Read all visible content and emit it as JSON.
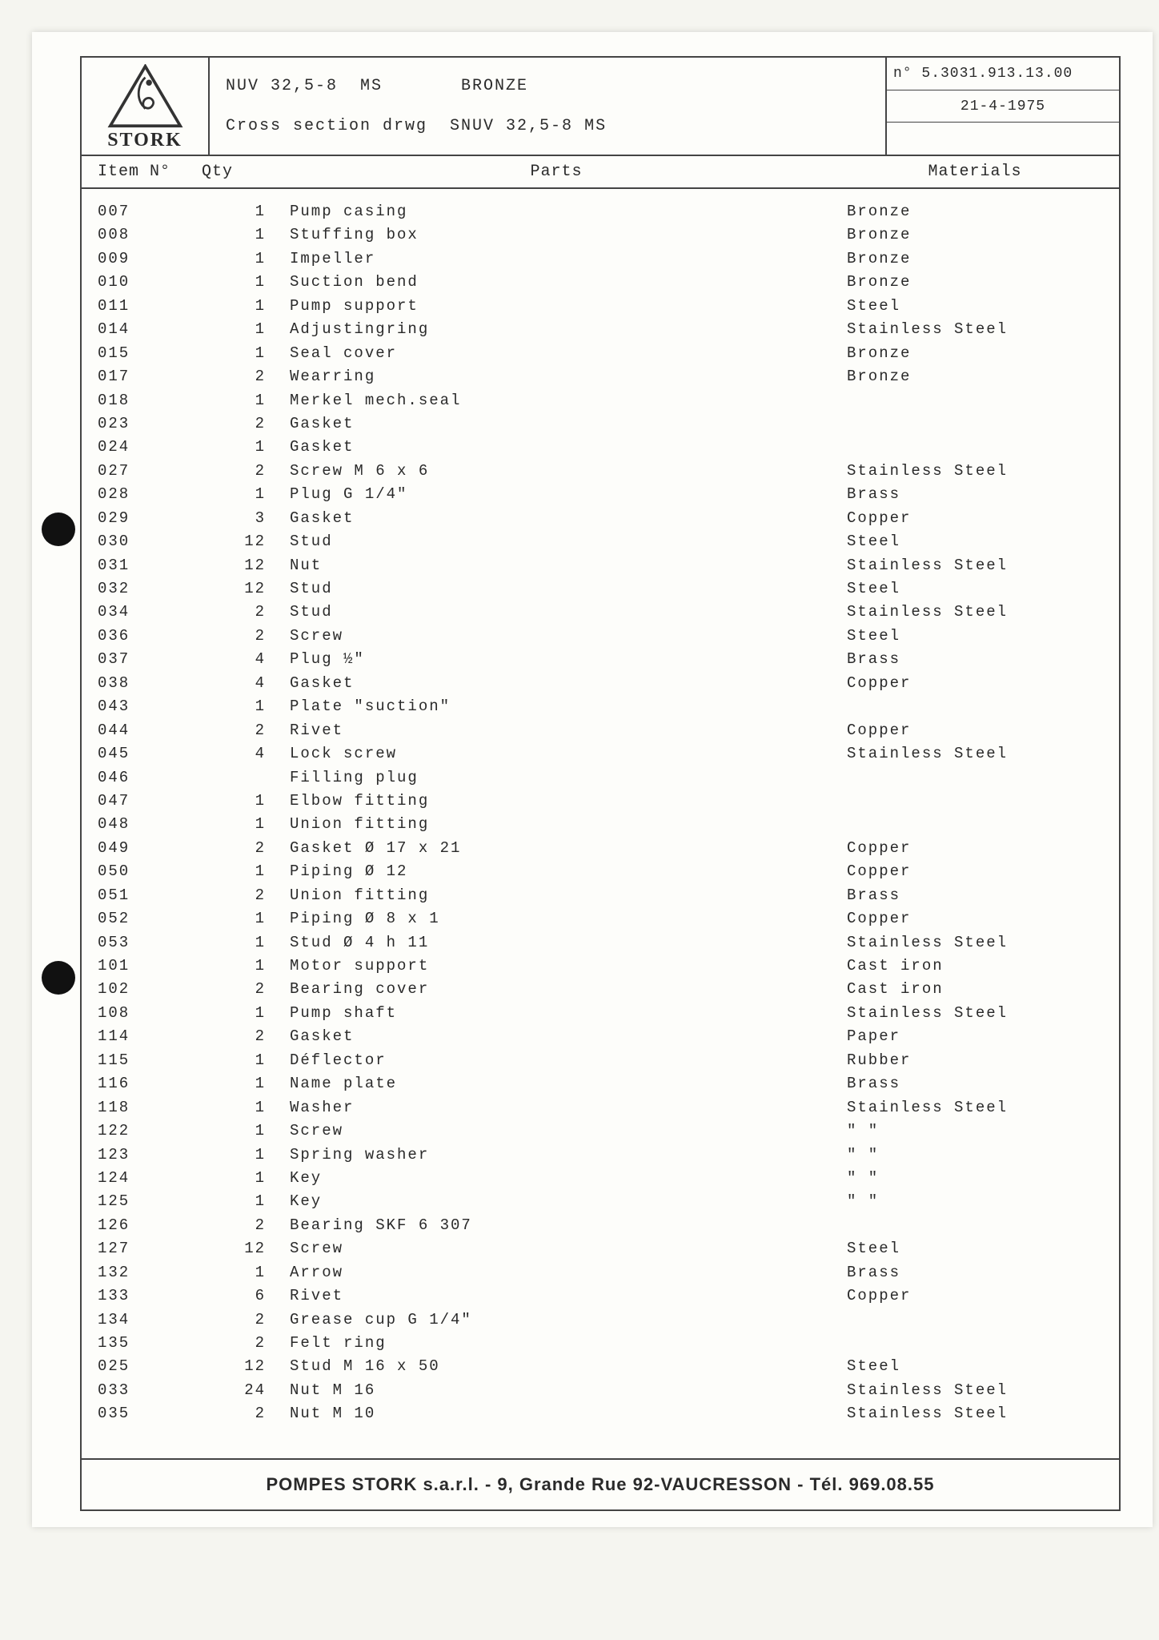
{
  "header": {
    "logo_text": "STORK",
    "title_line1": "NUV 32,5-8  MS       BRONZE",
    "title_line2": "Cross section drwg  SNUV 32,5-8 MS",
    "doc_no": "n° 5.3031.913.13.00",
    "date": "21-4-1975"
  },
  "columns": {
    "item": "Item N°",
    "qty": "Qty",
    "parts": "Parts",
    "materials": "Materials"
  },
  "rows": [
    {
      "item": "007",
      "qty": "1",
      "part": "Pump casing",
      "mat": "Bronze"
    },
    {
      "item": "008",
      "qty": "1",
      "part": "Stuffing box",
      "mat": "Bronze"
    },
    {
      "item": "009",
      "qty": "1",
      "part": "Impeller",
      "mat": "Bronze"
    },
    {
      "item": "010",
      "qty": "1",
      "part": "Suction bend",
      "mat": "Bronze"
    },
    {
      "item": "011",
      "qty": "1",
      "part": "Pump support",
      "mat": "Steel"
    },
    {
      "item": "014",
      "qty": "1",
      "part": "Adjustingring",
      "mat": "Stainless Steel"
    },
    {
      "item": "015",
      "qty": "1",
      "part": "Seal cover",
      "mat": "Bronze"
    },
    {
      "item": "017",
      "qty": "2",
      "part": "Wearring",
      "mat": "Bronze"
    },
    {
      "item": "018",
      "qty": "1",
      "part": "Merkel mech.seal",
      "mat": ""
    },
    {
      "item": "023",
      "qty": "2",
      "part": "Gasket",
      "mat": ""
    },
    {
      "item": "024",
      "qty": "1",
      "part": "Gasket",
      "mat": ""
    },
    {
      "item": "027",
      "qty": "2",
      "part": "Screw M 6 x 6",
      "mat": "Stainless Steel"
    },
    {
      "item": "028",
      "qty": "1",
      "part": "Plug G 1/4\"",
      "mat": "Brass"
    },
    {
      "item": "029",
      "qty": "3",
      "part": "Gasket",
      "mat": "Copper"
    },
    {
      "item": "030",
      "qty": "12",
      "part": "Stud",
      "mat": "Steel"
    },
    {
      "item": "031",
      "qty": "12",
      "part": "Nut",
      "mat": "Stainless Steel"
    },
    {
      "item": "032",
      "qty": "12",
      "part": "Stud",
      "mat": "Steel"
    },
    {
      "item": "034",
      "qty": "2",
      "part": "Stud",
      "mat": "Stainless Steel"
    },
    {
      "item": "036",
      "qty": "2",
      "part": "Screw",
      "mat": "Steel"
    },
    {
      "item": "037",
      "qty": "4",
      "part": "Plug ½\"",
      "mat": "Brass"
    },
    {
      "item": "038",
      "qty": "4",
      "part": "Gasket",
      "mat": "Copper"
    },
    {
      "item": "043",
      "qty": "1",
      "part": "Plate \"suction\"",
      "mat": ""
    },
    {
      "item": "044",
      "qty": "2",
      "part": "Rivet",
      "mat": "Copper"
    },
    {
      "item": "045",
      "qty": "4",
      "part": "Lock screw",
      "mat": "Stainless Steel"
    },
    {
      "item": "046",
      "qty": "",
      "part": "Filling plug",
      "mat": ""
    },
    {
      "item": "047",
      "qty": "1",
      "part": "Elbow fitting",
      "mat": ""
    },
    {
      "item": "048",
      "qty": "1",
      "part": "Union fitting",
      "mat": ""
    },
    {
      "item": "049",
      "qty": "2",
      "part": "Gasket Ø 17 x 21",
      "mat": "Copper"
    },
    {
      "item": "050",
      "qty": "1",
      "part": "Piping Ø 12",
      "mat": "Copper"
    },
    {
      "item": "051",
      "qty": "2",
      "part": "Union fitting",
      "mat": "Brass"
    },
    {
      "item": "052",
      "qty": "1",
      "part": "Piping Ø 8 x 1",
      "mat": "Copper"
    },
    {
      "item": "053",
      "qty": "1",
      "part": "Stud Ø 4 h 11",
      "mat": "Stainless Steel"
    },
    {
      "item": "101",
      "qty": "1",
      "part": "Motor support",
      "mat": "Cast iron"
    },
    {
      "item": "102",
      "qty": "2",
      "part": "Bearing cover",
      "mat": "Cast iron"
    },
    {
      "item": "108",
      "qty": "1",
      "part": "Pump shaft",
      "mat": "Stainless Steel"
    },
    {
      "item": "114",
      "qty": "2",
      "part": "Gasket",
      "mat": "Paper"
    },
    {
      "item": "115",
      "qty": "1",
      "part": "Déflector",
      "mat": "Rubber"
    },
    {
      "item": "116",
      "qty": "1",
      "part": "Name plate",
      "mat": "Brass"
    },
    {
      "item": "118",
      "qty": "1",
      "part": "Washer",
      "mat": "Stainless Steel"
    },
    {
      "item": "122",
      "qty": "1",
      "part": "Screw",
      "mat": "   \"          \""
    },
    {
      "item": "123",
      "qty": "1",
      "part": "Spring washer",
      "mat": "   \"          \""
    },
    {
      "item": "124",
      "qty": "1",
      "part": "Key",
      "mat": "   \"          \""
    },
    {
      "item": "125",
      "qty": "1",
      "part": "Key",
      "mat": "   \"          \""
    },
    {
      "item": "126",
      "qty": "2",
      "part": "Bearing SKF 6 307",
      "mat": ""
    },
    {
      "item": "127",
      "qty": "12",
      "part": "Screw",
      "mat": "Steel"
    },
    {
      "item": "132",
      "qty": "1",
      "part": "Arrow",
      "mat": "Brass"
    },
    {
      "item": "133",
      "qty": "6",
      "part": "Rivet",
      "mat": "Copper"
    },
    {
      "item": "134",
      "qty": "2",
      "part": "Grease cup G 1/4\"",
      "mat": ""
    },
    {
      "item": "135",
      "qty": "2",
      "part": "Felt ring",
      "mat": ""
    },
    {
      "item": "025",
      "qty": "12",
      "part": "Stud M 16 x 50",
      "mat": "Steel"
    },
    {
      "item": "033",
      "qty": "24",
      "part": "Nut M 16",
      "mat": "Stainless Steel"
    },
    {
      "item": "035",
      "qty": "2",
      "part": "Nut M 10",
      "mat": "Stainless Steel"
    }
  ],
  "footer": "POMPES STORK s.a.r.l.  -  9, Grande Rue   92-VAUCRESSON  -  Tél. 969.08.55"
}
